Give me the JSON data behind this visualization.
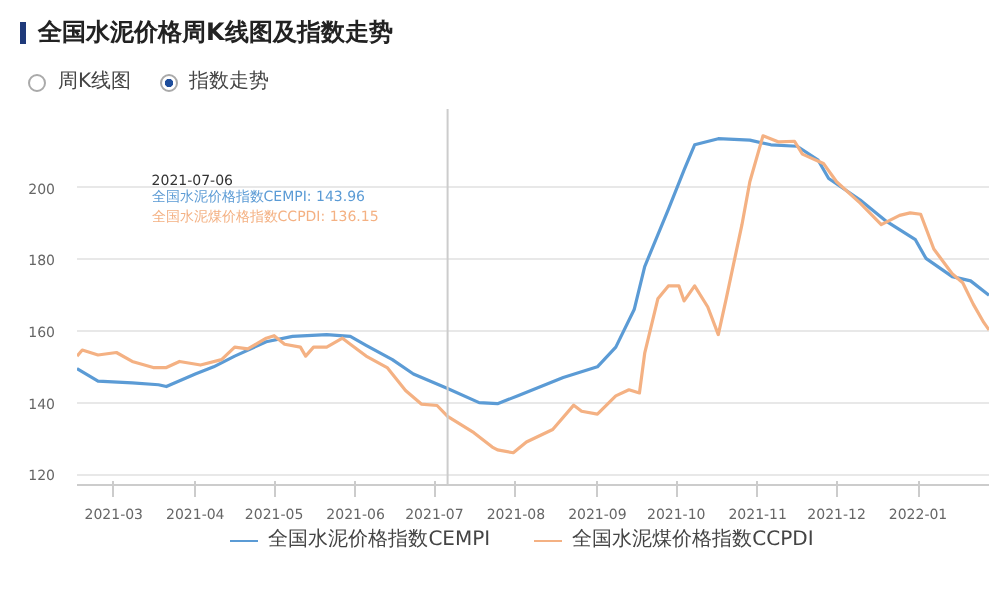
{
  "chart_data": {
    "type": "line",
    "title": "全国水泥价格周K线图及指数走势",
    "xlim": [
      "2021-02-15",
      "2022-01-28"
    ],
    "ylim": [
      117,
      222
    ],
    "xticks": [
      {
        "value": "2021-03-01",
        "label": "2021-03"
      },
      {
        "value": "2021-04-01",
        "label": "2021-04"
      },
      {
        "value": "2021-05-01",
        "label": "2021-05"
      },
      {
        "value": "2021-06-01",
        "label": "2021-06"
      },
      {
        "value": "2021-07-01",
        "label": "2021-07"
      },
      {
        "value": "2021-08-01",
        "label": "2021-08"
      },
      {
        "value": "2021-09-01",
        "label": "2021-09"
      },
      {
        "value": "2021-10-01",
        "label": "2021-10"
      },
      {
        "value": "2021-11-01",
        "label": "2021-11"
      },
      {
        "value": "2021-12-01",
        "label": "2021-12"
      },
      {
        "value": "2022-01-01",
        "label": "2022-01"
      }
    ],
    "yticks": [
      120,
      140,
      160,
      180,
      200
    ],
    "grid": "y",
    "legend": "bottom",
    "marker": "none",
    "line_style": "solid",
    "series": [
      {
        "name": "全国水泥价格指数CEMPI",
        "color": "#5b9bd5",
        "x": [
          "2021-02-15",
          "2021-02-23",
          "2021-03-08",
          "2021-03-18",
          "2021-03-21",
          "2021-04-01",
          "2021-04-08",
          "2021-04-16",
          "2021-04-28",
          "2021-05-08",
          "2021-05-21",
          "2021-05-30",
          "2021-06-05",
          "2021-06-15",
          "2021-06-23",
          "2021-07-06",
          "2021-07-18",
          "2021-07-25",
          "2021-08-02",
          "2021-08-19",
          "2021-09-01",
          "2021-09-08",
          "2021-09-15",
          "2021-09-19",
          "2021-09-28",
          "2021-10-04",
          "2021-10-08",
          "2021-10-17",
          "2021-10-29",
          "2021-11-06",
          "2021-11-16",
          "2021-11-24",
          "2021-11-28",
          "2021-12-10",
          "2021-12-20",
          "2021-12-31",
          "2022-01-04",
          "2022-01-14",
          "2022-01-21",
          "2022-01-28"
        ],
        "values": [
          149.5,
          146,
          145.5,
          145,
          144.5,
          148,
          150,
          153,
          157,
          158.5,
          159,
          158.5,
          156,
          152,
          148,
          143.96,
          140,
          139.7,
          142,
          147,
          150,
          155.5,
          166,
          178,
          194,
          205,
          212,
          213.7,
          213.3,
          212,
          211.6,
          207.7,
          202.6,
          196.6,
          190.6,
          185.5,
          180.3,
          175.2,
          174,
          170
        ]
      },
      {
        "name": "全国水泥煤价格指数CCPDI",
        "color": "#f4b183",
        "x": [
          "2021-02-15",
          "2021-02-17",
          "2021-02-23",
          "2021-03-02",
          "2021-03-08",
          "2021-03-16",
          "2021-03-21",
          "2021-03-26",
          "2021-04-03",
          "2021-04-11",
          "2021-04-16",
          "2021-04-21",
          "2021-04-28",
          "2021-05-01",
          "2021-05-05",
          "2021-05-11",
          "2021-05-13",
          "2021-05-16",
          "2021-05-21",
          "2021-05-27",
          "2021-05-30",
          "2021-06-05",
          "2021-06-13",
          "2021-06-20",
          "2021-06-26",
          "2021-07-02",
          "2021-07-06",
          "2021-07-16",
          "2021-07-23",
          "2021-07-25",
          "2021-07-31",
          "2021-08-05",
          "2021-08-15",
          "2021-08-23",
          "2021-08-26",
          "2021-09-01",
          "2021-09-08",
          "2021-09-13",
          "2021-09-17",
          "2021-09-19",
          "2021-09-24",
          "2021-09-28",
          "2021-10-02",
          "2021-10-04",
          "2021-10-08",
          "2021-10-13",
          "2021-10-17",
          "2021-10-20",
          "2021-10-26",
          "2021-10-29",
          "2021-11-03",
          "2021-11-09",
          "2021-11-15",
          "2021-11-18",
          "2021-11-26",
          "2021-12-01",
          "2021-12-10",
          "2021-12-18",
          "2021-12-25",
          "2021-12-29",
          "2022-01-02",
          "2022-01-07",
          "2022-01-14",
          "2022-01-18",
          "2022-01-22",
          "2022-01-26",
          "2022-01-28"
        ],
        "values": [
          153,
          154.7,
          153.3,
          154,
          151.5,
          149.8,
          149.8,
          151.5,
          150.5,
          152,
          155.5,
          155,
          158,
          158.7,
          156.3,
          155.5,
          153,
          155.5,
          155.5,
          158,
          156.3,
          153,
          149.8,
          143.4,
          139.6,
          139.2,
          136.15,
          131.6,
          127.6,
          126.8,
          126,
          129,
          132.5,
          139.3,
          137.6,
          136.8,
          141.9,
          143.6,
          142.7,
          153.8,
          169,
          172.6,
          172.6,
          168.4,
          172.6,
          166.7,
          159,
          169,
          189.7,
          201.7,
          214.5,
          212.8,
          213,
          209.4,
          206.8,
          201.7,
          195.7,
          189.7,
          192.3,
          193,
          192.6,
          182.9,
          176,
          173.5,
          167.5,
          162.4,
          160.3
        ]
      }
    ],
    "ref_lines": [
      {
        "axis": "x",
        "value": "2021-07-06",
        "color": "#cccccc"
      }
    ],
    "annotations": [
      "周K线图",
      "指数走势",
      "2021-07-06",
      "全国水泥价格指数CEMPI: 143.96",
      "全国水泥煤价格指数CCPDI: 136.15"
    ]
  }
}
